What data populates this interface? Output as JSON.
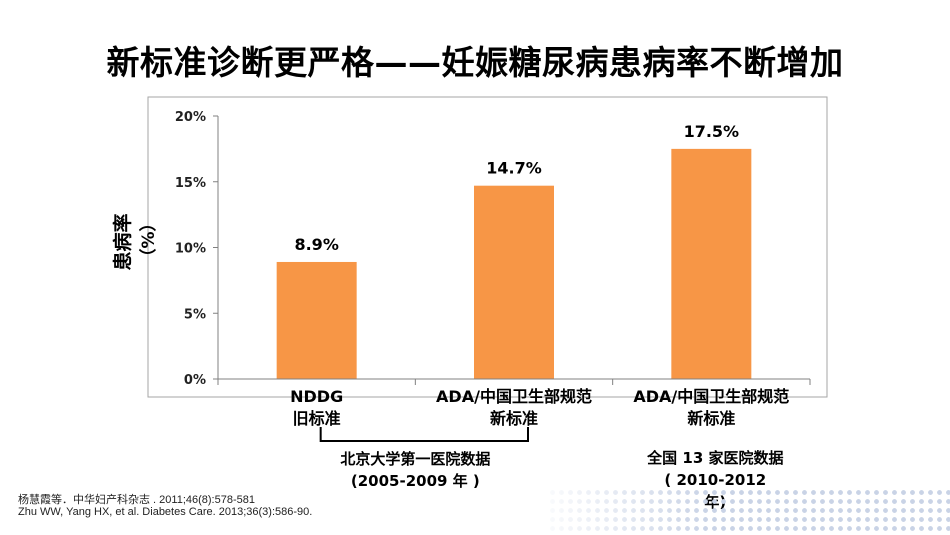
{
  "slide": {
    "title": "新标准诊断更严格——妊娠糖尿病患病率不断增加"
  },
  "chart_data": {
    "type": "bar",
    "categories": [
      [
        "NDDG",
        "旧标准"
      ],
      [
        "ADA/中国卫生部规范",
        "新标准"
      ],
      [
        "ADA/中国卫生部规范",
        "新标准"
      ]
    ],
    "values": [
      8.9,
      14.7,
      17.5
    ],
    "data_labels": [
      "8.9%",
      "14.7%",
      "17.5%"
    ],
    "ylabel": [
      "患病率",
      "（%）"
    ],
    "ylim": [
      0,
      20
    ],
    "yticks": [
      {
        "value": 0,
        "label": "0%"
      },
      {
        "value": 5,
        "label": "5%"
      },
      {
        "value": 10,
        "label": "10%"
      },
      {
        "value": 15,
        "label": "15%"
      },
      {
        "value": 20,
        "label": "20%"
      }
    ],
    "bar_color": "#f79646",
    "grid": false,
    "groups": [
      {
        "label": [
          "北京大学第一医院数据",
          "(2005-2009 年 )"
        ],
        "categories": [
          0,
          1
        ]
      },
      {
        "label": [
          "全国 13 家医院数据",
          "( 2010-2012",
          "年)"
        ],
        "categories": [
          2
        ]
      }
    ]
  },
  "references": [
    "杨慧霞等．中华妇产科杂志 . 2011;46(8):578-581",
    "Zhu WW, Yang HX, et al. Diabetes Care. 2013;36(3):586-90."
  ]
}
